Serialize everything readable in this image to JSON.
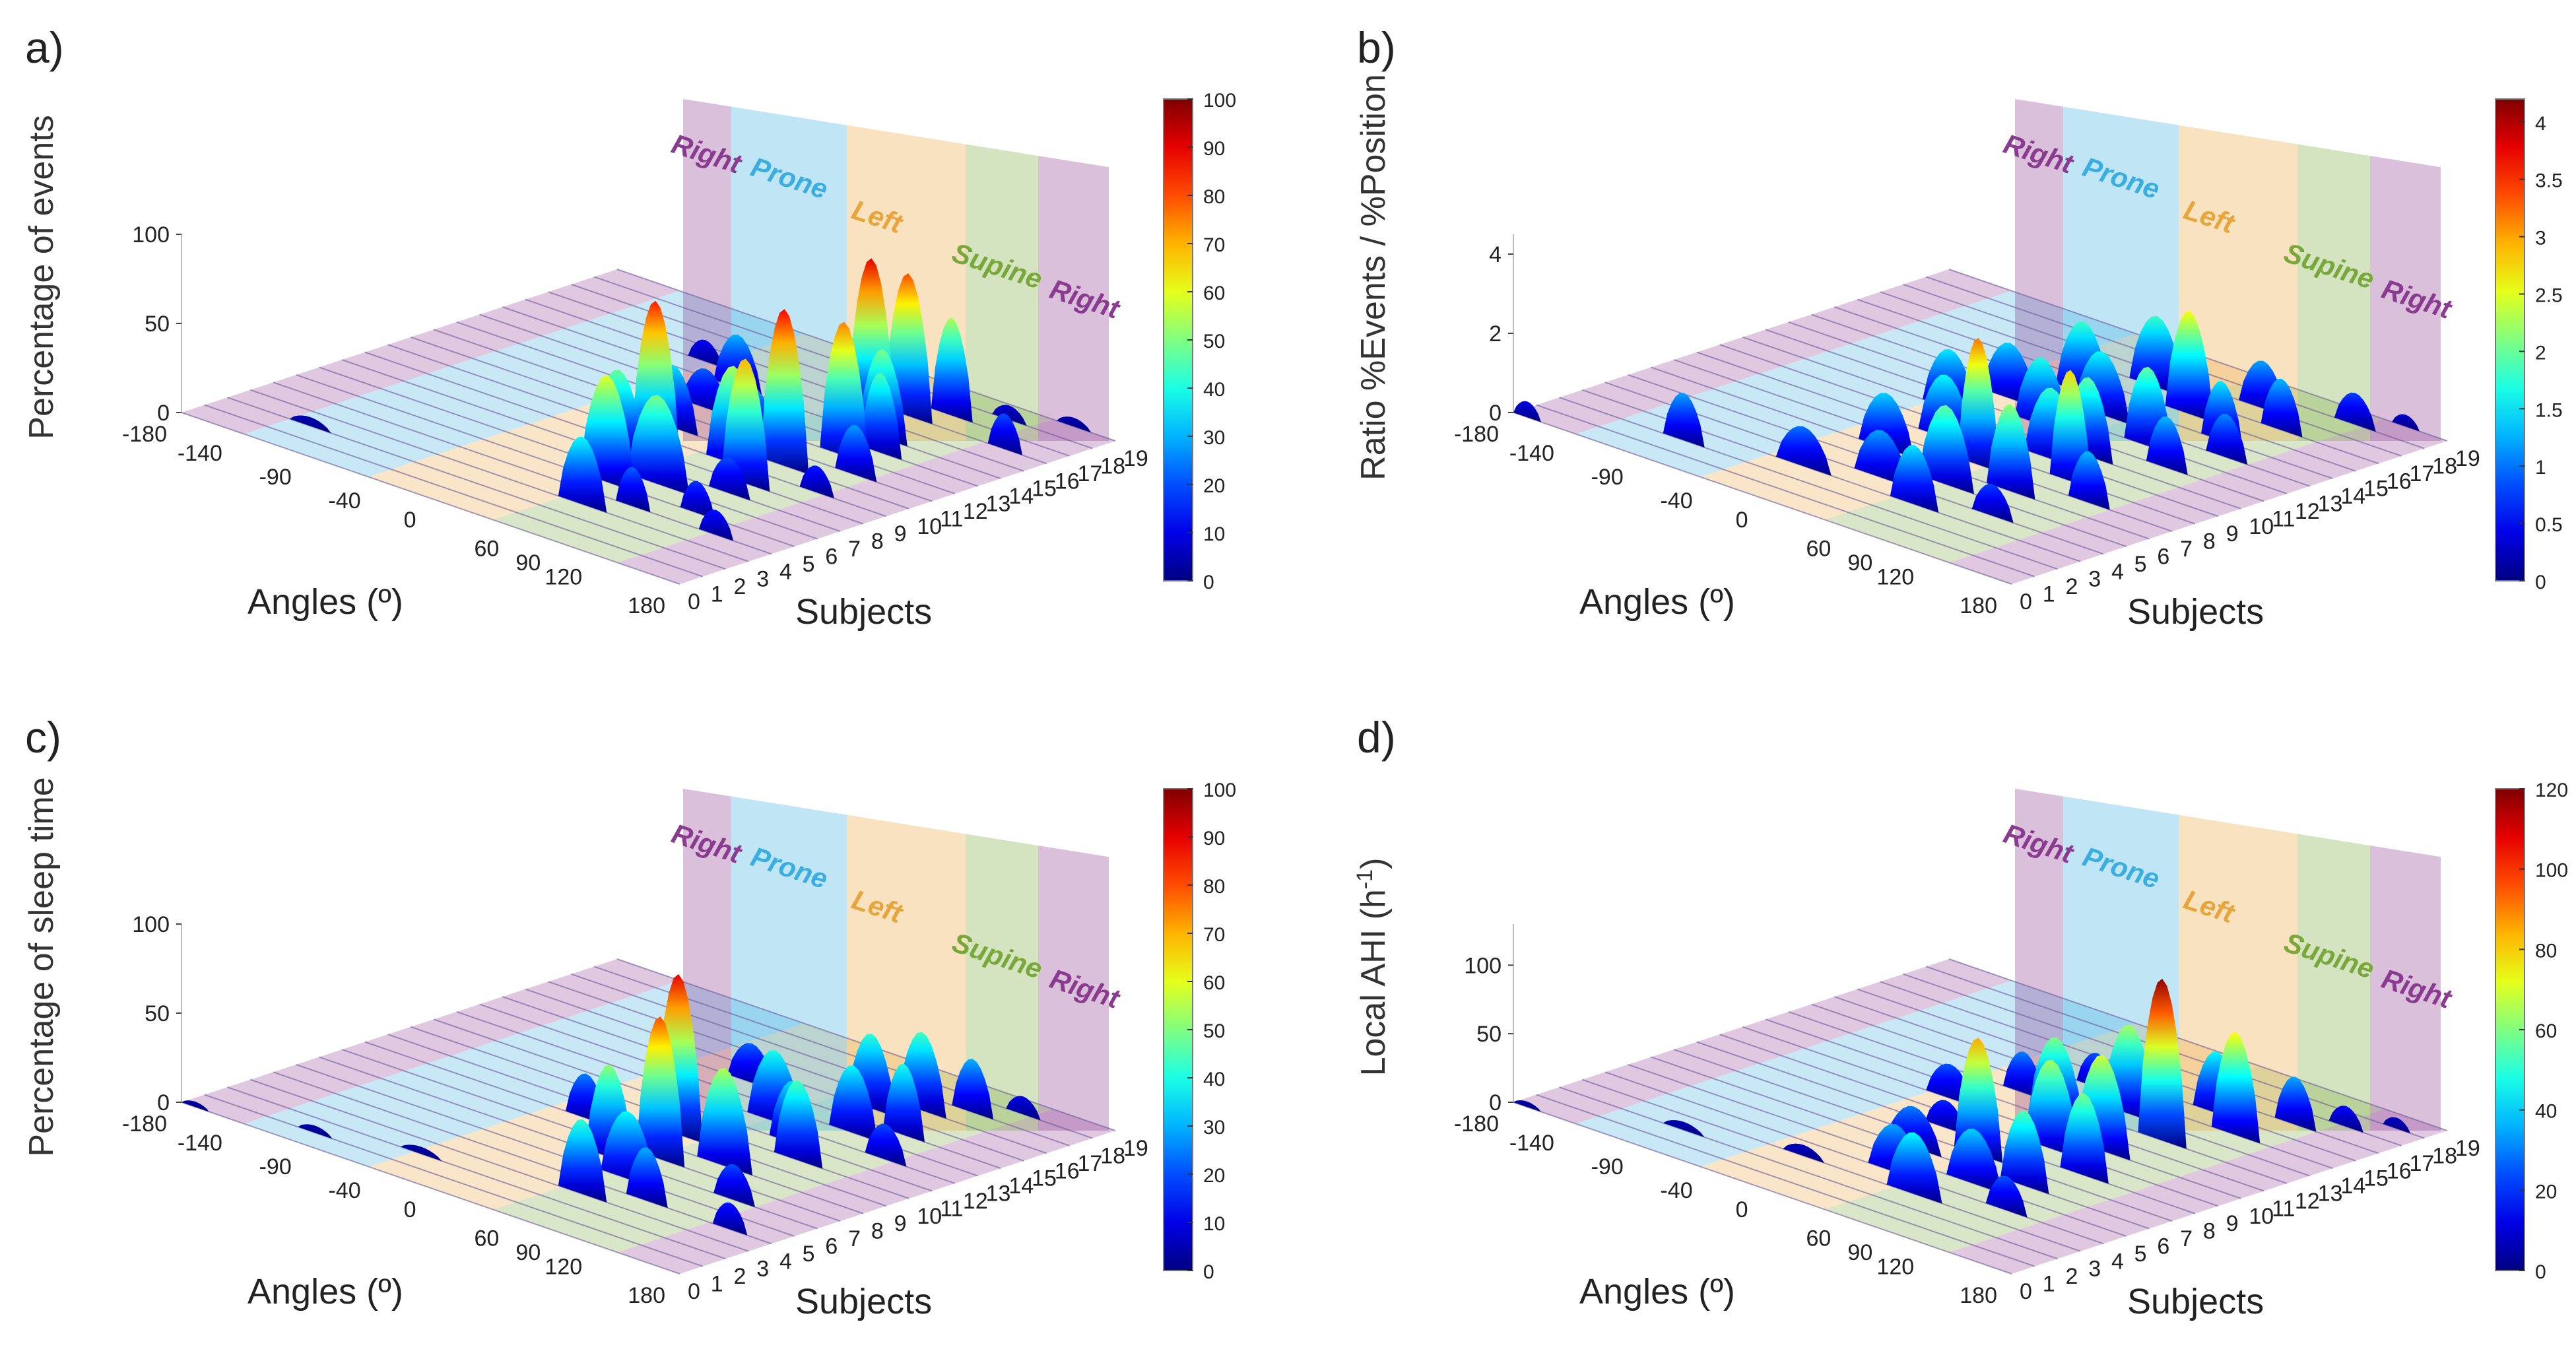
{
  "chart_data": [
    {
      "panel": "a)",
      "type": "3d-waterfall",
      "zlabel": "Percentage of events",
      "xlabel": "Angles (º)",
      "ylabel": "Subjects",
      "zticks": [
        "0",
        "50",
        "100"
      ],
      "angle_ticks": [
        "-180",
        "-140",
        "-90",
        "-40",
        "0",
        "60",
        "90",
        "120",
        "180"
      ],
      "subject_ticks": [
        "0",
        "1",
        "2",
        "3",
        "4",
        "5",
        "6",
        "7",
        "8",
        "9",
        "10",
        "11",
        "12",
        "13",
        "14",
        "15",
        "16",
        "17",
        "18",
        "19"
      ],
      "zlim": [
        0,
        100
      ],
      "colorbar": {
        "min": 0,
        "max": 100,
        "ticks": [
          "0",
          "10",
          "20",
          "30",
          "40",
          "50",
          "60",
          "70",
          "80",
          "90",
          "100"
        ]
      },
      "position_bands": [
        "Right",
        "Prone",
        "Left",
        "Supine",
        "Right"
      ],
      "colors": {
        "Right": "#8b3b8f",
        "Prone": "#3aaee0",
        "Left": "#e8a53c",
        "Supine": "#78a83a"
      },
      "peaks": [
        {
          "subject": 2,
          "angle": -120,
          "value": 5,
          "width": 30
        },
        {
          "subject": 3,
          "angle": 60,
          "value": 38,
          "width": 35
        },
        {
          "subject": 4,
          "angle": 80,
          "value": 22,
          "width": 25
        },
        {
          "subject": 4,
          "angle": 140,
          "value": 14,
          "width": 25
        },
        {
          "subject": 5,
          "angle": 45,
          "value": 60,
          "width": 40
        },
        {
          "subject": 5,
          "angle": 110,
          "value": 18,
          "width": 25
        },
        {
          "subject": 6,
          "angle": 65,
          "value": 50,
          "width": 45
        },
        {
          "subject": 7,
          "angle": 20,
          "value": 48,
          "width": 40
        },
        {
          "subject": 7,
          "angle": 100,
          "value": 20,
          "width": 30
        },
        {
          "subject": 8,
          "angle": 30,
          "value": 85,
          "width": 35
        },
        {
          "subject": 8,
          "angle": 95,
          "value": 70,
          "width": 35
        },
        {
          "subject": 9,
          "angle": 70,
          "value": 55,
          "width": 40
        },
        {
          "subject": 9,
          "angle": 130,
          "value": 15,
          "width": 25
        },
        {
          "subject": 10,
          "angle": 10,
          "value": 35,
          "width": 35
        },
        {
          "subject": 10,
          "angle": 90,
          "value": 88,
          "width": 35
        },
        {
          "subject": 11,
          "angle": 50,
          "value": 30,
          "width": 40
        },
        {
          "subject": 11,
          "angle": 125,
          "value": 28,
          "width": 30
        },
        {
          "subject": 12,
          "angle": 0,
          "value": 22,
          "width": 35
        },
        {
          "subject": 12,
          "angle": 100,
          "value": 75,
          "width": 35
        },
        {
          "subject": 13,
          "angle": 40,
          "value": 20,
          "width": 30
        },
        {
          "subject": 13,
          "angle": 110,
          "value": 45,
          "width": 30
        },
        {
          "subject": 14,
          "angle": -10,
          "value": 30,
          "width": 35
        },
        {
          "subject": 14,
          "angle": 95,
          "value": 50,
          "width": 35
        },
        {
          "subject": 15,
          "angle": 70,
          "value": 90,
          "width": 35
        },
        {
          "subject": 15,
          "angle": -50,
          "value": 12,
          "width": 25
        },
        {
          "subject": 16,
          "angle": 80,
          "value": 80,
          "width": 35
        },
        {
          "subject": 16,
          "angle": 150,
          "value": 20,
          "width": 25
        },
        {
          "subject": 17,
          "angle": 95,
          "value": 55,
          "width": 30
        },
        {
          "subject": 18,
          "angle": 120,
          "value": 8,
          "width": 25
        },
        {
          "subject": 19,
          "angle": 150,
          "value": 5,
          "width": 25
        }
      ]
    },
    {
      "panel": "b)",
      "type": "3d-waterfall",
      "zlabel": "Ratio %Events / %Position",
      "xlabel": "Angles (º)",
      "ylabel": "Subjects",
      "zticks": [
        "0",
        "2",
        "4"
      ],
      "angle_ticks": [
        "-180",
        "-140",
        "-90",
        "-40",
        "0",
        "60",
        "90",
        "120",
        "180"
      ],
      "subject_ticks": [
        "0",
        "1",
        "2",
        "3",
        "4",
        "5",
        "6",
        "7",
        "8",
        "9",
        "10",
        "11",
        "12",
        "13",
        "14",
        "15",
        "16",
        "17",
        "18",
        "19"
      ],
      "zlim": [
        0,
        4.5
      ],
      "colorbar": {
        "min": 0,
        "max": 4.2,
        "ticks": [
          "0",
          "0.5",
          "1",
          "1.5",
          "2",
          "2.5",
          "3",
          "3.5",
          "4"
        ]
      },
      "position_bands": [
        "Right",
        "Prone",
        "Left",
        "Supine",
        "Right"
      ],
      "colors": {
        "Right": "#8b3b8f",
        "Prone": "#3aaee0",
        "Left": "#e8a53c",
        "Supine": "#78a83a"
      },
      "peaks": [
        {
          "subject": 0,
          "angle": -170,
          "value": 0.4,
          "width": 20
        },
        {
          "subject": 2,
          "angle": -90,
          "value": 1.2,
          "width": 30
        },
        {
          "subject": 3,
          "angle": -20,
          "value": 1.0,
          "width": 40
        },
        {
          "subject": 3,
          "angle": 60,
          "value": 1.5,
          "width": 35
        },
        {
          "subject": 4,
          "angle": 20,
          "value": 1.2,
          "width": 40
        },
        {
          "subject": 4,
          "angle": 100,
          "value": 0.8,
          "width": 30
        },
        {
          "subject": 5,
          "angle": 50,
          "value": 2.0,
          "width": 40
        },
        {
          "subject": 6,
          "angle": -10,
          "value": 1.4,
          "width": 40
        },
        {
          "subject": 6,
          "angle": 80,
          "value": 2.2,
          "width": 35
        },
        {
          "subject": 7,
          "angle": 40,
          "value": 3.2,
          "width": 30
        },
        {
          "subject": 7,
          "angle": 120,
          "value": 1.3,
          "width": 30
        },
        {
          "subject": 8,
          "angle": 0,
          "value": 1.6,
          "width": 40
        },
        {
          "subject": 8,
          "angle": 90,
          "value": 2.8,
          "width": 30
        },
        {
          "subject": 9,
          "angle": 60,
          "value": 1.8,
          "width": 40
        },
        {
          "subject": 10,
          "angle": -30,
          "value": 1.5,
          "width": 40
        },
        {
          "subject": 10,
          "angle": 70,
          "value": 2.0,
          "width": 35
        },
        {
          "subject": 11,
          "angle": 20,
          "value": 1.7,
          "width": 40
        },
        {
          "subject": 11,
          "angle": 110,
          "value": 1.3,
          "width": 30
        },
        {
          "subject": 12,
          "angle": -20,
          "value": 1.4,
          "width": 40
        },
        {
          "subject": 12,
          "angle": 80,
          "value": 2.0,
          "width": 35
        },
        {
          "subject": 13,
          "angle": 30,
          "value": 1.6,
          "width": 40
        },
        {
          "subject": 13,
          "angle": 120,
          "value": 1.1,
          "width": 30
        },
        {
          "subject": 14,
          "angle": 0,
          "value": 1.8,
          "width": 40
        },
        {
          "subject": 14,
          "angle": 100,
          "value": 1.5,
          "width": 30
        },
        {
          "subject": 15,
          "angle": 60,
          "value": 2.6,
          "width": 35
        },
        {
          "subject": 16,
          "angle": 20,
          "value": 1.8,
          "width": 40
        },
        {
          "subject": 16,
          "angle": 110,
          "value": 1.3,
          "width": 30
        },
        {
          "subject": 17,
          "angle": 80,
          "value": 1.2,
          "width": 35
        },
        {
          "subject": 18,
          "angle": 130,
          "value": 0.8,
          "width": 30
        },
        {
          "subject": 19,
          "angle": 150,
          "value": 0.3,
          "width": 20
        }
      ]
    },
    {
      "panel": "c)",
      "type": "3d-waterfall",
      "zlabel": "Percentage of sleep time",
      "xlabel": "Angles (º)",
      "ylabel": "Subjects",
      "zticks": [
        "0",
        "50",
        "100"
      ],
      "angle_ticks": [
        "-180",
        "-140",
        "-90",
        "-40",
        "0",
        "60",
        "90",
        "120",
        "180"
      ],
      "subject_ticks": [
        "0",
        "1",
        "2",
        "3",
        "4",
        "5",
        "6",
        "7",
        "8",
        "9",
        "10",
        "11",
        "12",
        "13",
        "14",
        "15",
        "16",
        "17",
        "18",
        "19"
      ],
      "zlim": [
        0,
        100
      ],
      "colorbar": {
        "min": 0,
        "max": 100,
        "ticks": [
          "0",
          "10",
          "20",
          "30",
          "40",
          "50",
          "60",
          "70",
          "80",
          "90",
          "100"
        ]
      },
      "position_bands": [
        "Right",
        "Prone",
        "Left",
        "Supine",
        "Right"
      ],
      "colors": {
        "Right": "#8b3b8f",
        "Prone": "#3aaee0",
        "Left": "#e8a53c",
        "Supine": "#78a83a"
      },
      "peaks": [
        {
          "subject": 0,
          "angle": -170,
          "value": 3,
          "width": 20
        },
        {
          "subject": 1,
          "angle": -100,
          "value": 4,
          "width": 25
        },
        {
          "subject": 2,
          "angle": -40,
          "value": 4,
          "width": 30
        },
        {
          "subject": 3,
          "angle": 60,
          "value": 42,
          "width": 35
        },
        {
          "subject": 4,
          "angle": 90,
          "value": 30,
          "width": 30
        },
        {
          "subject": 4,
          "angle": 150,
          "value": 15,
          "width": 25
        },
        {
          "subject": 5,
          "angle": 60,
          "value": 38,
          "width": 40
        },
        {
          "subject": 6,
          "angle": 30,
          "value": 52,
          "width": 35
        },
        {
          "subject": 6,
          "angle": 120,
          "value": 20,
          "width": 30
        },
        {
          "subject": 7,
          "angle": 50,
          "value": 80,
          "width": 35
        },
        {
          "subject": 8,
          "angle": 80,
          "value": 55,
          "width": 40
        },
        {
          "subject": 8,
          "angle": -20,
          "value": 25,
          "width": 30
        },
        {
          "subject": 9,
          "angle": 30,
          "value": 90,
          "width": 35
        },
        {
          "subject": 10,
          "angle": 100,
          "value": 45,
          "width": 35
        },
        {
          "subject": 11,
          "angle": -10,
          "value": 20,
          "width": 30
        },
        {
          "subject": 11,
          "angle": 80,
          "value": 35,
          "width": 35
        },
        {
          "subject": 12,
          "angle": 50,
          "value": 40,
          "width": 40
        },
        {
          "subject": 12,
          "angle": 130,
          "value": 20,
          "width": 30
        },
        {
          "subject": 13,
          "angle": 90,
          "value": 38,
          "width": 35
        },
        {
          "subject": 14,
          "angle": 0,
          "value": 22,
          "width": 35
        },
        {
          "subject": 14,
          "angle": 110,
          "value": 40,
          "width": 30
        },
        {
          "subject": 15,
          "angle": 70,
          "value": 42,
          "width": 35
        },
        {
          "subject": 16,
          "angle": 90,
          "value": 44,
          "width": 35
        },
        {
          "subject": 17,
          "angle": 110,
          "value": 30,
          "width": 30
        },
        {
          "subject": 18,
          "angle": 130,
          "value": 10,
          "width": 25
        }
      ]
    },
    {
      "panel": "d)",
      "type": "3d-waterfall",
      "zlabel": "Local AHI (h",
      "zlabel_sup": "-1",
      "zlabel_end": ")",
      "xlabel": "Angles (º)",
      "ylabel": "Subjects",
      "zticks": [
        "0",
        "50",
        "100"
      ],
      "angle_ticks": [
        "-180",
        "-140",
        "-90",
        "-40",
        "0",
        "60",
        "90",
        "120",
        "180"
      ],
      "subject_ticks": [
        "0",
        "1",
        "2",
        "3",
        "4",
        "5",
        "6",
        "7",
        "8",
        "9",
        "10",
        "11",
        "12",
        "13",
        "14",
        "15",
        "16",
        "17",
        "18",
        "19"
      ],
      "zlim": [
        0,
        130
      ],
      "colorbar": {
        "min": 0,
        "max": 120,
        "ticks": [
          "0",
          "20",
          "40",
          "60",
          "80",
          "100",
          "120"
        ]
      },
      "position_bands": [
        "Right",
        "Prone",
        "Left",
        "Supine",
        "Right"
      ],
      "colors": {
        "Right": "#8b3b8f",
        "Prone": "#3aaee0",
        "Left": "#e8a53c",
        "Supine": "#78a83a"
      },
      "peaks": [
        {
          "subject": 0,
          "angle": -170,
          "value": 4,
          "width": 20
        },
        {
          "subject": 2,
          "angle": -90,
          "value": 6,
          "width": 30
        },
        {
          "subject": 3,
          "angle": -20,
          "value": 8,
          "width": 30
        },
        {
          "subject": 3,
          "angle": 60,
          "value": 45,
          "width": 40
        },
        {
          "subject": 4,
          "angle": 30,
          "value": 35,
          "width": 40
        },
        {
          "subject": 4,
          "angle": 110,
          "value": 25,
          "width": 30
        },
        {
          "subject": 5,
          "angle": 70,
          "value": 40,
          "width": 40
        },
        {
          "subject": 6,
          "angle": 10,
          "value": 30,
          "width": 40
        },
        {
          "subject": 6,
          "angle": 90,
          "value": 55,
          "width": 35
        },
        {
          "subject": 7,
          "angle": 40,
          "value": 85,
          "width": 35
        },
        {
          "subject": 8,
          "angle": 100,
          "value": 60,
          "width": 35
        },
        {
          "subject": 8,
          "angle": 0,
          "value": 20,
          "width": 30
        },
        {
          "subject": 9,
          "angle": 60,
          "value": 65,
          "width": 40
        },
        {
          "subject": 10,
          "angle": -30,
          "value": 25,
          "width": 35
        },
        {
          "subject": 10,
          "angle": 80,
          "value": 70,
          "width": 40
        },
        {
          "subject": 11,
          "angle": 30,
          "value": 60,
          "width": 40
        },
        {
          "subject": 12,
          "angle": 90,
          "value": 118,
          "width": 35
        },
        {
          "subject": 12,
          "angle": -10,
          "value": 30,
          "width": 30
        },
        {
          "subject": 13,
          "angle": 50,
          "value": 65,
          "width": 40
        },
        {
          "subject": 14,
          "angle": 110,
          "value": 75,
          "width": 35
        },
        {
          "subject": 14,
          "angle": 10,
          "value": 25,
          "width": 30
        },
        {
          "subject": 15,
          "angle": 80,
          "value": 45,
          "width": 35
        },
        {
          "subject": 16,
          "angle": 120,
          "value": 35,
          "width": 30
        },
        {
          "subject": 17,
          "angle": 140,
          "value": 15,
          "width": 25
        },
        {
          "subject": 18,
          "angle": 160,
          "value": 8,
          "width": 20
        }
      ]
    }
  ]
}
